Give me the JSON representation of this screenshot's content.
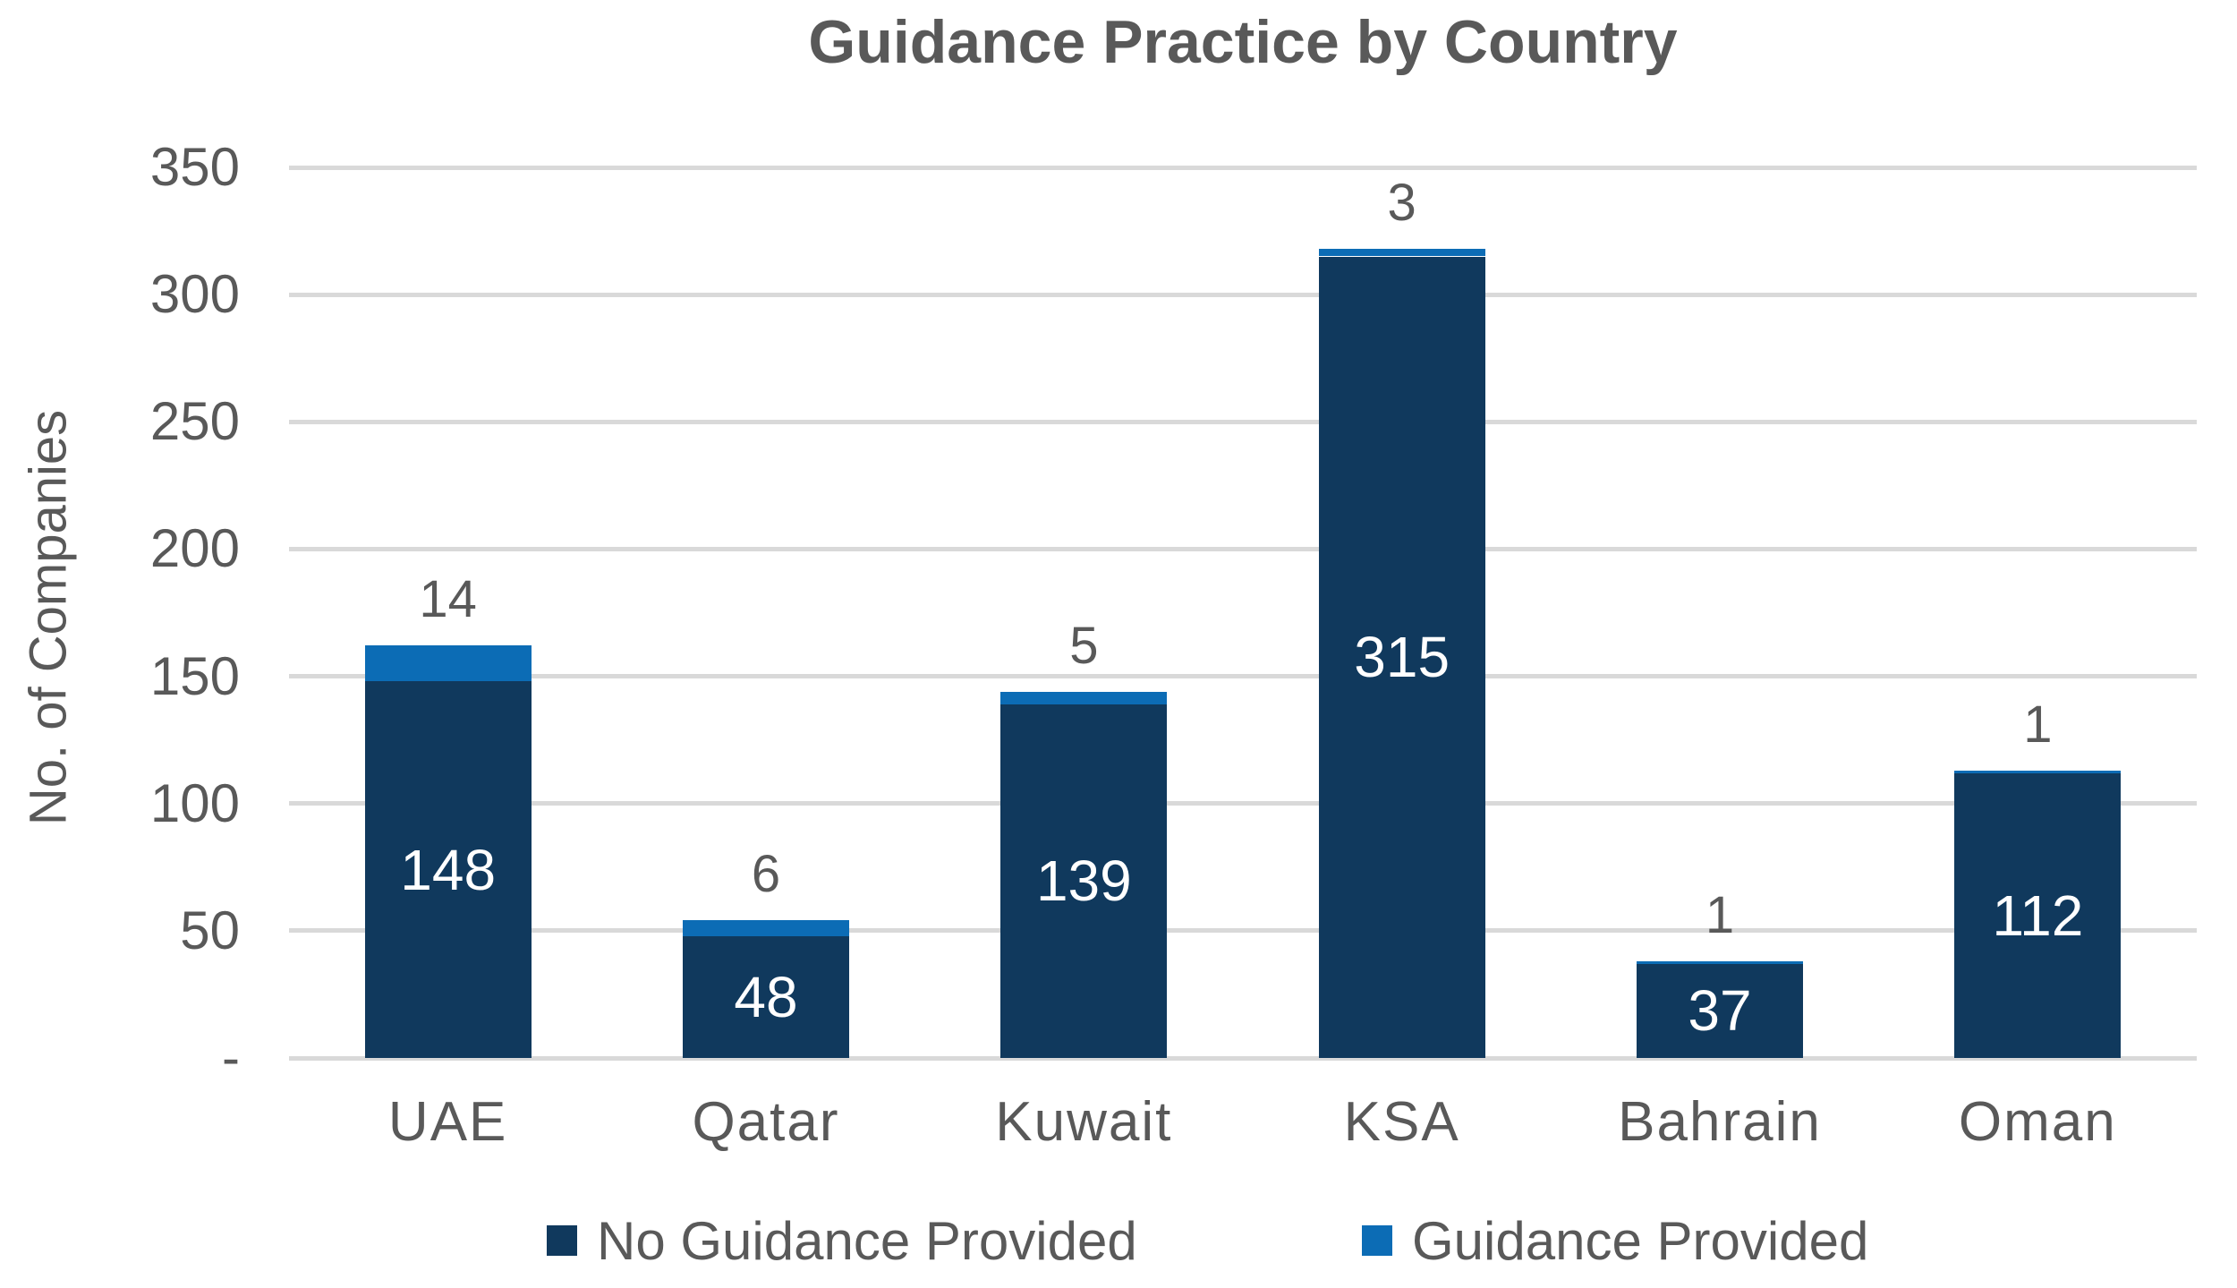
{
  "chart_data": {
    "type": "bar",
    "stacked": true,
    "title": "Guidance Practice by Country",
    "xlabel": "",
    "ylabel": "No. of Companies",
    "categories": [
      "UAE",
      "Qatar",
      "Kuwait",
      "KSA",
      "Bahrain",
      "Oman"
    ],
    "series": [
      {
        "name": "No Guidance Provided",
        "color": "#10395D",
        "values": [
          148,
          48,
          139,
          315,
          37,
          112
        ],
        "label_position": "inside",
        "label_color": "#FFFFFF"
      },
      {
        "name": "Guidance Provided",
        "color": "#0C6CB5",
        "values": [
          14,
          6,
          5,
          3,
          1,
          1
        ],
        "label_position": "outside-top",
        "label_color": "#595959"
      }
    ],
    "totals": [
      162,
      54,
      144,
      318,
      38,
      113
    ],
    "ylim": [
      0,
      350
    ],
    "ytick_step": 50,
    "ytick_labels": [
      "-",
      "50",
      "100",
      "150",
      "200",
      "250",
      "300",
      "350"
    ],
    "grid": true,
    "gridline_color": "#D9D9D9",
    "text_color": "#595959",
    "background_color": "#FFFFFF",
    "legend_position": "bottom"
  }
}
